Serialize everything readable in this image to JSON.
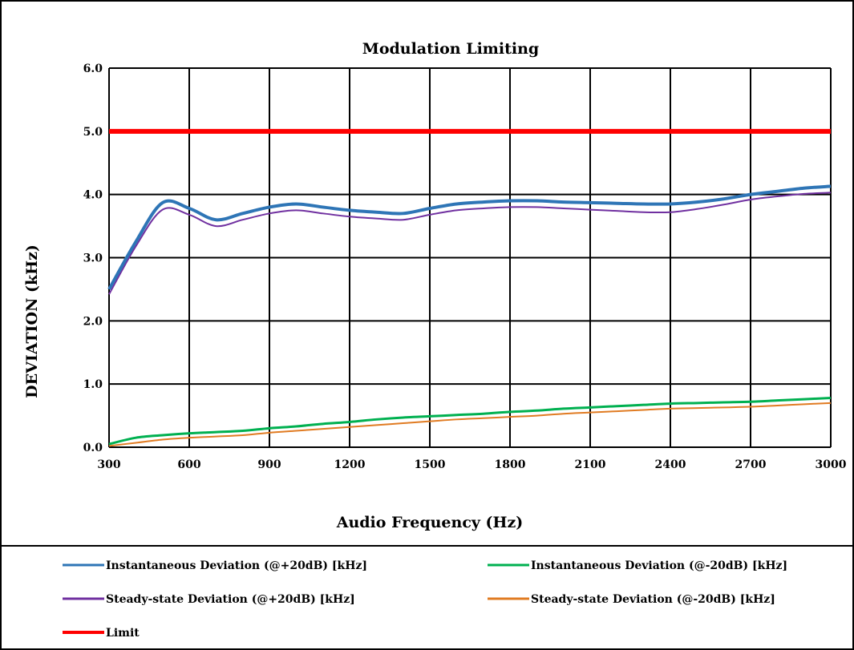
{
  "chart_data": {
    "type": "line",
    "title": "Modulation Limiting",
    "xlabel": "Audio Frequency (Hz)",
    "ylabel": "DEVIATION (kHz)",
    "xlim": [
      300,
      3000
    ],
    "ylim": [
      0,
      6
    ],
    "x_ticks": [
      "300",
      "600",
      "900",
      "1200",
      "1500",
      "1800",
      "2100",
      "2400",
      "2700",
      "3000"
    ],
    "y_ticks": [
      "0.0",
      "1.0",
      "2.0",
      "3.0",
      "4.0",
      "5.0",
      "6.0"
    ],
    "grid": true,
    "legend_position": "bottom",
    "series": [
      {
        "name": "Instantaneous Deviation (@+20dB) [kHz]",
        "color": "#2e75b6",
        "x": [
          300,
          400,
          500,
          600,
          700,
          800,
          900,
          1000,
          1100,
          1200,
          1300,
          1400,
          1500,
          1600,
          1700,
          1800,
          1900,
          2000,
          2100,
          2200,
          2300,
          2400,
          2500,
          2600,
          2700,
          2800,
          2900,
          3000
        ],
        "y": [
          2.5,
          3.25,
          3.87,
          3.78,
          3.6,
          3.7,
          3.8,
          3.85,
          3.8,
          3.75,
          3.72,
          3.7,
          3.78,
          3.85,
          3.88,
          3.9,
          3.9,
          3.88,
          3.87,
          3.86,
          3.85,
          3.85,
          3.88,
          3.93,
          4.0,
          4.05,
          4.1,
          4.13
        ]
      },
      {
        "name": "Instantaneous Deviation (@-20dB) [kHz]",
        "color": "#00b050",
        "x": [
          300,
          400,
          500,
          600,
          700,
          800,
          900,
          1000,
          1100,
          1200,
          1300,
          1400,
          1500,
          1600,
          1700,
          1800,
          1900,
          2000,
          2100,
          2200,
          2300,
          2400,
          2500,
          2600,
          2700,
          2800,
          2900,
          3000
        ],
        "y": [
          0.05,
          0.15,
          0.19,
          0.22,
          0.24,
          0.26,
          0.3,
          0.33,
          0.37,
          0.4,
          0.44,
          0.47,
          0.49,
          0.51,
          0.53,
          0.56,
          0.58,
          0.61,
          0.63,
          0.65,
          0.67,
          0.69,
          0.7,
          0.71,
          0.72,
          0.74,
          0.76,
          0.78
        ]
      },
      {
        "name": "Steady-state Deviation (@+20dB) [kHz]",
        "color": "#7030a0",
        "x": [
          300,
          400,
          500,
          600,
          700,
          800,
          900,
          1000,
          1100,
          1200,
          1300,
          1400,
          1500,
          1600,
          1700,
          1800,
          1900,
          2000,
          2100,
          2200,
          2300,
          2400,
          2500,
          2600,
          2700,
          2800,
          2900,
          3000
        ],
        "y": [
          2.42,
          3.18,
          3.76,
          3.68,
          3.5,
          3.6,
          3.7,
          3.75,
          3.7,
          3.65,
          3.62,
          3.6,
          3.68,
          3.75,
          3.78,
          3.8,
          3.8,
          3.78,
          3.76,
          3.74,
          3.72,
          3.72,
          3.77,
          3.84,
          3.92,
          3.97,
          4.01,
          4.03
        ]
      },
      {
        "name": "Steady-state Deviation (@-20dB) [kHz]",
        "color": "#e07b22",
        "x": [
          300,
          400,
          500,
          600,
          700,
          800,
          900,
          1000,
          1100,
          1200,
          1300,
          1400,
          1500,
          1600,
          1700,
          1800,
          1900,
          2000,
          2100,
          2200,
          2300,
          2400,
          2500,
          2600,
          2700,
          2800,
          2900,
          3000
        ],
        "y": [
          0.02,
          0.07,
          0.12,
          0.15,
          0.17,
          0.19,
          0.23,
          0.26,
          0.29,
          0.32,
          0.35,
          0.38,
          0.41,
          0.44,
          0.46,
          0.48,
          0.5,
          0.53,
          0.55,
          0.57,
          0.59,
          0.61,
          0.62,
          0.63,
          0.64,
          0.66,
          0.68,
          0.7
        ]
      },
      {
        "name": "Limit",
        "color": "#ff0000",
        "x": [
          300,
          3000
        ],
        "y": [
          5.0,
          5.0
        ]
      }
    ]
  }
}
